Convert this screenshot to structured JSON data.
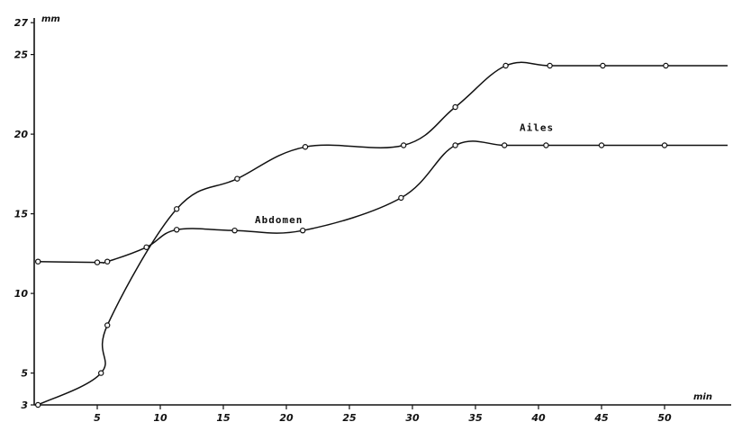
{
  "chart_data": {
    "type": "line",
    "xlabel": "min",
    "ylabel": "mm",
    "xlim": [
      0,
      55
    ],
    "ylim": [
      3,
      27
    ],
    "x_ticks": [
      5,
      10,
      15,
      20,
      25,
      30,
      35,
      40,
      45,
      50
    ],
    "y_ticks": [
      3,
      5,
      10,
      15,
      20,
      25,
      27
    ],
    "x_tick_labels": [
      "5",
      "10",
      "15",
      "20",
      "25",
      "30",
      "35",
      "40",
      "45",
      "50"
    ],
    "y_tick_labels": [
      "3",
      "5",
      "10",
      "15",
      "20",
      "25",
      "27"
    ],
    "grid": false,
    "legend": "none",
    "series": [
      {
        "name": "Ailes",
        "x": [
          0.3,
          5.3,
          5.8,
          11.3,
          16.1,
          21.5,
          29.3,
          33.4,
          37.4,
          40.9,
          45.1,
          50.1,
          55
        ],
        "y": [
          3.0,
          5.0,
          8.0,
          15.3,
          17.2,
          19.2,
          19.3,
          21.7,
          24.3,
          24.3,
          24.3,
          24.3,
          24.3
        ]
      },
      {
        "name": "Abdomen",
        "x": [
          0.3,
          5.0,
          5.8,
          8.9,
          11.3,
          15.9,
          21.3,
          29.1,
          33.4,
          37.3,
          40.6,
          45.0,
          50.0,
          55
        ],
        "y": [
          12.0,
          11.95,
          12.0,
          12.9,
          14.0,
          13.95,
          13.95,
          16.0,
          19.3,
          19.3,
          19.3,
          19.3,
          19.3,
          19.3
        ]
      }
    ],
    "annotations": [
      {
        "text": "Ailes",
        "x": 38.5,
        "y": 20.2
      },
      {
        "text": "Abdomen",
        "x": 17.5,
        "y": 14.4
      }
    ]
  }
}
